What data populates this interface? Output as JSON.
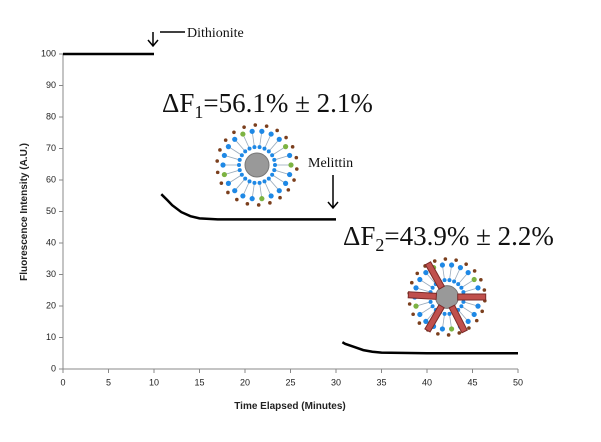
{
  "chart_data": {
    "type": "line",
    "x_label": "Time Elapsed (Minutes)",
    "y_label": "Fluorescence Intensity (A.U.)",
    "xlim": [
      0,
      50
    ],
    "xticks": [
      0,
      5,
      10,
      15,
      20,
      25,
      30,
      35,
      40,
      45,
      50
    ],
    "ylim": [
      0,
      100
    ],
    "yticks": [
      0,
      10,
      20,
      30,
      40,
      50,
      60,
      70,
      80,
      90,
      100
    ],
    "grid": false,
    "series": [
      {
        "color": "#000000",
        "x": [
          0,
          2,
          4,
          6,
          8,
          10,
          10.4,
          10.8,
          11.5,
          12,
          13,
          14,
          15,
          17,
          20,
          25,
          30,
          30.3,
          30.7,
          31,
          32,
          33,
          34,
          35,
          40,
          45,
          50
        ],
        "values": [
          100,
          100,
          100,
          100,
          100,
          100,
          null,
          55.5,
          53.5,
          52,
          49.8,
          48.5,
          47.8,
          47.5,
          47.5,
          47.5,
          47.5,
          null,
          8.5,
          8,
          7,
          6,
          5.5,
          5.2,
          5,
          5,
          5
        ]
      }
    ],
    "annotations": [
      {
        "text": "Dithionite"
      },
      {
        "text": "Melittin"
      },
      {
        "parts": [
          "ΔF",
          "1",
          "=56.1% ± 2.1%"
        ]
      },
      {
        "parts": [
          "ΔF",
          "2",
          "=43.9% ± 2.2%"
        ]
      }
    ]
  }
}
